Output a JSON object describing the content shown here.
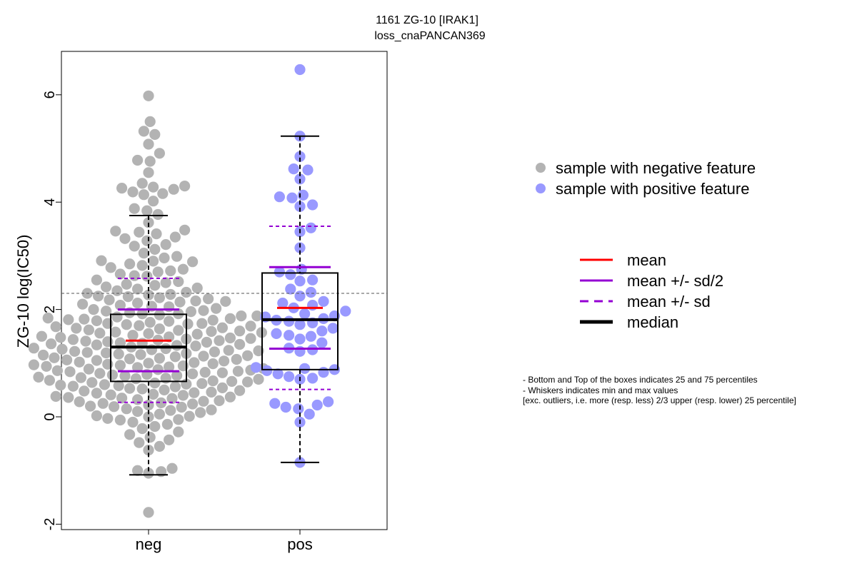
{
  "chart_data": {
    "type": "box-swarm",
    "title_line1": "1161 ZG-10 [IRAK1]",
    "title_line2": "loss_cnaPANCAN369",
    "ylabel": "ZG-10 log(IC50)",
    "ylim": [
      -2.1,
      6.8
    ],
    "yticks": [
      -2,
      0,
      2,
      4,
      6
    ],
    "categories": [
      "neg",
      "pos"
    ],
    "threshold_line": 2.3,
    "groups": [
      {
        "name": "neg",
        "color": "#b3b3b3",
        "box": {
          "q1": 0.66,
          "median": 1.3,
          "q3": 1.91,
          "whisker_low": -1.08,
          "whisker_high": 3.75
        },
        "mean": 1.42,
        "mean_plus_half_sd": 2.0,
        "mean_minus_half_sd": 0.85,
        "mean_plus_sd": 2.58,
        "mean_minus_sd": 0.27,
        "points": [
          5.98,
          5.5,
          5.32,
          5.26,
          5.08,
          4.91,
          4.78,
          4.76,
          4.55,
          4.35,
          4.3,
          4.28,
          4.26,
          4.24,
          4.19,
          4.16,
          4.14,
          4.02,
          3.88,
          3.84,
          3.77,
          3.62,
          3.48,
          3.46,
          3.44,
          3.41,
          3.35,
          3.32,
          3.28,
          3.21,
          3.18,
          3.12,
          3.05,
          2.99,
          2.96,
          2.9,
          2.89,
          2.85,
          2.82,
          2.78,
          2.75,
          2.72,
          2.7,
          2.66,
          2.62,
          2.55,
          2.5,
          2.47,
          2.45,
          2.42,
          2.4,
          2.38,
          2.35,
          2.32,
          2.3,
          2.28,
          2.25,
          2.22,
          2.2,
          2.18,
          2.15,
          2.12,
          2.1,
          2.08,
          2.05,
          2.02,
          2.0,
          1.98,
          1.96,
          1.94,
          1.92,
          1.9,
          1.88,
          1.86,
          1.84,
          1.82,
          1.8,
          1.78,
          1.76,
          1.74,
          1.72,
          1.7,
          1.68,
          1.66,
          1.64,
          1.62,
          1.6,
          1.58,
          1.56,
          1.54,
          1.52,
          1.5,
          1.48,
          1.46,
          1.44,
          1.42,
          1.4,
          1.38,
          1.36,
          1.34,
          1.32,
          1.3,
          1.28,
          1.26,
          1.24,
          1.22,
          1.2,
          1.18,
          1.16,
          1.14,
          1.12,
          1.1,
          1.08,
          1.06,
          1.04,
          1.02,
          1.0,
          0.98,
          0.96,
          0.94,
          0.92,
          0.9,
          0.88,
          0.86,
          0.84,
          0.82,
          0.8,
          0.78,
          0.76,
          0.74,
          0.72,
          0.7,
          0.68,
          0.66,
          0.64,
          0.62,
          0.6,
          0.58,
          0.56,
          0.54,
          0.52,
          0.5,
          0.48,
          0.46,
          0.44,
          0.42,
          0.4,
          0.38,
          0.36,
          0.34,
          0.32,
          0.3,
          0.28,
          0.26,
          0.24,
          0.22,
          0.2,
          0.18,
          0.15,
          0.12,
          0.1,
          0.08,
          0.05,
          0.02,
          0.0,
          -0.03,
          -0.06,
          -0.1,
          -0.14,
          -0.18,
          -0.22,
          -0.28,
          -0.33,
          -0.38,
          -0.43,
          -0.48,
          -0.55,
          -0.62,
          -0.96,
          -1.0,
          -1.02,
          -1.05,
          -1.78,
          2.91,
          2.63,
          2.27,
          2.14,
          1.97,
          1.83,
          1.69,
          1.57,
          1.45,
          1.33,
          1.21,
          1.09,
          0.97,
          0.85,
          0.73,
          0.61,
          0.49,
          0.37,
          0.25,
          0.13,
          0.01,
          1.88,
          1.61,
          1.41,
          1.19,
          0.99,
          0.81,
          0.59,
          0.41,
          1.73,
          1.47,
          1.27,
          1.05,
          0.87,
          0.63,
          1.35,
          1.15,
          0.93,
          0.71,
          1.55,
          1.25,
          0.95,
          0.67,
          1.65,
          1.37,
          1.13,
          0.89,
          0.57,
          1.79,
          1.49,
          1.17,
          0.79,
          0.45,
          2.06,
          1.74,
          1.43,
          1.07,
          0.77,
          0.35,
          2.24,
          1.92,
          1.59,
          1.23,
          0.83,
          0.53,
          0.19,
          2.52,
          2.16,
          1.81,
          1.39,
          1.01,
          0.65,
          0.29,
          -0.05
        ]
      },
      {
        "name": "pos",
        "color": "#9999ff",
        "box": {
          "q1": 0.88,
          "median": 1.81,
          "q3": 2.68,
          "whisker_low": -0.85,
          "whisker_high": 5.23
        },
        "mean": 2.03,
        "mean_plus_half_sd": 2.79,
        "mean_minus_half_sd": 1.27,
        "mean_plus_sd": 3.55,
        "mean_minus_sd": 0.51,
        "points": [
          6.47,
          5.23,
          4.85,
          4.62,
          4.6,
          4.43,
          4.13,
          4.1,
          4.08,
          3.95,
          3.92,
          3.52,
          3.45,
          3.15,
          2.75,
          2.7,
          2.65,
          2.55,
          2.53,
          2.38,
          2.32,
          2.25,
          2.15,
          2.12,
          2.08,
          2.03,
          1.97,
          1.92,
          1.88,
          1.86,
          1.83,
          1.8,
          1.78,
          1.75,
          1.72,
          1.65,
          1.6,
          1.55,
          1.52,
          1.5,
          1.45,
          1.38,
          1.28,
          1.25,
          1.22,
          0.92,
          0.9,
          0.88,
          0.86,
          0.83,
          0.8,
          0.75,
          0.72,
          0.7,
          0.28,
          0.25,
          0.22,
          0.18,
          0.15,
          0.05,
          -0.1,
          -0.85
        ]
      }
    ],
    "legend_points": [
      {
        "label": "sample with negative feature",
        "color": "#b3b3b3"
      },
      {
        "label": "sample with positive feature",
        "color": "#9999ff"
      }
    ],
    "legend_lines": [
      {
        "label": "mean",
        "color": "#ff0000",
        "style": "solid",
        "weight": "normal"
      },
      {
        "label": "mean +/- sd/2",
        "color": "#9400d3",
        "style": "solid",
        "weight": "normal"
      },
      {
        "label": "mean +/- sd",
        "color": "#9400d3",
        "style": "dashed",
        "weight": "normal"
      },
      {
        "label": "median",
        "color": "#000000",
        "style": "solid",
        "weight": "bold"
      }
    ],
    "notes": [
      "- Bottom and Top of the boxes indicates 25 and 75 percentiles",
      "- Whiskers indicates min and max values",
      "[exc. outliers, i.e. more (resp. less) 2/3 upper (resp. lower) 25 percentile]"
    ]
  }
}
